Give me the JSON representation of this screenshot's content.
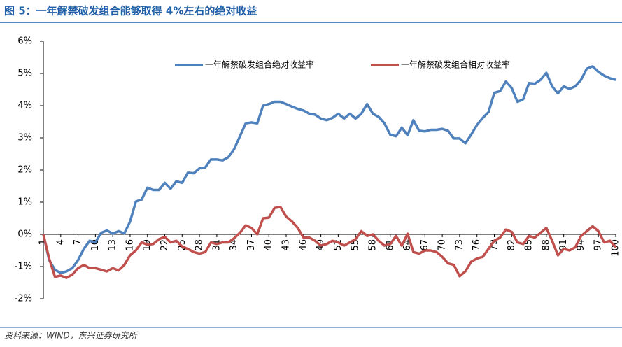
{
  "title": "图 5：一年解禁破发组合能够取得 4%左右的绝对收益",
  "source": "资料来源：WIND，东兴证券研究所",
  "chart_data": {
    "type": "line",
    "x": [
      1,
      2,
      3,
      4,
      5,
      6,
      7,
      8,
      9,
      10,
      11,
      12,
      13,
      14,
      15,
      16,
      17,
      18,
      19,
      20,
      21,
      22,
      23,
      24,
      25,
      26,
      27,
      28,
      29,
      30,
      31,
      32,
      33,
      34,
      35,
      36,
      37,
      38,
      39,
      40,
      41,
      42,
      43,
      44,
      45,
      46,
      47,
      48,
      49,
      50,
      51,
      52,
      53,
      54,
      55,
      56,
      57,
      58,
      59,
      60,
      61,
      62,
      63,
      64,
      65,
      66,
      67,
      68,
      69,
      70,
      71,
      72,
      73,
      74,
      75,
      76,
      77,
      78,
      79,
      80,
      81,
      82,
      83,
      84,
      85,
      86,
      87,
      88,
      89,
      90,
      91,
      92,
      93,
      94,
      95,
      96,
      97,
      98,
      99,
      100
    ],
    "xlim": [
      1,
      100
    ],
    "xticks": [
      1,
      4,
      7,
      10,
      13,
      16,
      19,
      22,
      25,
      28,
      31,
      34,
      37,
      40,
      43,
      46,
      49,
      52,
      55,
      58,
      61,
      64,
      67,
      70,
      73,
      76,
      79,
      82,
      85,
      88,
      91,
      94,
      97,
      100
    ],
    "ylim": [
      -2,
      6
    ],
    "yticks": [
      {
        "value": -2,
        "label": "-2%"
      },
      {
        "value": -1,
        "label": "-1%"
      },
      {
        "value": 0,
        "label": "0%"
      },
      {
        "value": 1,
        "label": "1%"
      },
      {
        "value": 2,
        "label": "2%"
      },
      {
        "value": 3,
        "label": "3%"
      },
      {
        "value": 4,
        "label": "4%"
      },
      {
        "value": 5,
        "label": "5%"
      },
      {
        "value": 6,
        "label": "6%"
      }
    ],
    "series": [
      {
        "name": "一年解禁破发组合绝对收益率",
        "color": "#4f81bd",
        "values": [
          0,
          -0.8,
          -1.1,
          -1.2,
          -1.15,
          -1.05,
          -0.8,
          -0.45,
          -0.2,
          -0.25,
          0.05,
          0.12,
          0.02,
          0.1,
          0.03,
          0.4,
          1.02,
          1.08,
          1.45,
          1.38,
          1.38,
          1.6,
          1.42,
          1.65,
          1.6,
          1.92,
          1.9,
          2.05,
          2.08,
          2.33,
          2.33,
          2.3,
          2.4,
          2.65,
          3.05,
          3.45,
          3.48,
          3.45,
          4.0,
          4.05,
          4.12,
          4.12,
          4.05,
          3.97,
          3.9,
          3.85,
          3.75,
          3.72,
          3.6,
          3.55,
          3.62,
          3.75,
          3.6,
          3.75,
          3.6,
          3.75,
          4.05,
          3.75,
          3.65,
          3.45,
          3.1,
          3.05,
          3.32,
          3.08,
          3.55,
          3.22,
          3.2,
          3.25,
          3.25,
          3.28,
          3.22,
          2.98,
          2.98,
          2.83,
          3.1,
          3.4,
          3.62,
          3.8,
          4.4,
          4.45,
          4.75,
          4.55,
          4.12,
          4.2,
          4.7,
          4.68,
          4.8,
          5.02,
          4.6,
          4.38,
          4.6,
          4.52,
          4.6,
          4.8,
          5.15,
          5.22,
          5.05,
          4.93,
          4.85,
          4.8
        ]
      },
      {
        "name": "一年解禁破发组合相对收益率",
        "color": "#c0504d",
        "values": [
          0,
          -0.75,
          -1.32,
          -1.28,
          -1.35,
          -1.25,
          -1.05,
          -0.95,
          -1.05,
          -1.05,
          -1.1,
          -1.15,
          -1.05,
          -1.12,
          -0.95,
          -0.65,
          -0.5,
          -0.25,
          -0.32,
          -0.3,
          -0.15,
          -0.08,
          -0.25,
          -0.2,
          -0.38,
          -0.45,
          -0.55,
          -0.6,
          -0.55,
          -0.25,
          -0.3,
          -0.25,
          -0.25,
          -0.12,
          0.05,
          0.28,
          0.2,
          0.0,
          0.5,
          0.52,
          0.82,
          0.85,
          0.55,
          0.4,
          0.2,
          -0.1,
          -0.1,
          -0.2,
          -0.35,
          -0.3,
          -0.2,
          -0.25,
          -0.35,
          -0.25,
          -0.15,
          0.1,
          -0.05,
          0.0,
          -0.2,
          -0.35,
          -0.3,
          -0.05,
          -0.35,
          0.02,
          -0.55,
          -0.6,
          -0.5,
          -0.5,
          -0.55,
          -0.7,
          -0.9,
          -0.95,
          -1.3,
          -1.15,
          -0.85,
          -0.75,
          -0.7,
          -0.45,
          -0.2,
          -0.1,
          0.15,
          0.08,
          -0.25,
          -0.3,
          -0.05,
          -0.1,
          0.05,
          0.2,
          -0.2,
          -0.65,
          -0.45,
          -0.5,
          -0.4,
          -0.05,
          0.1,
          0.25,
          0.1,
          -0.25,
          -0.2,
          -0.4
        ]
      }
    ]
  }
}
